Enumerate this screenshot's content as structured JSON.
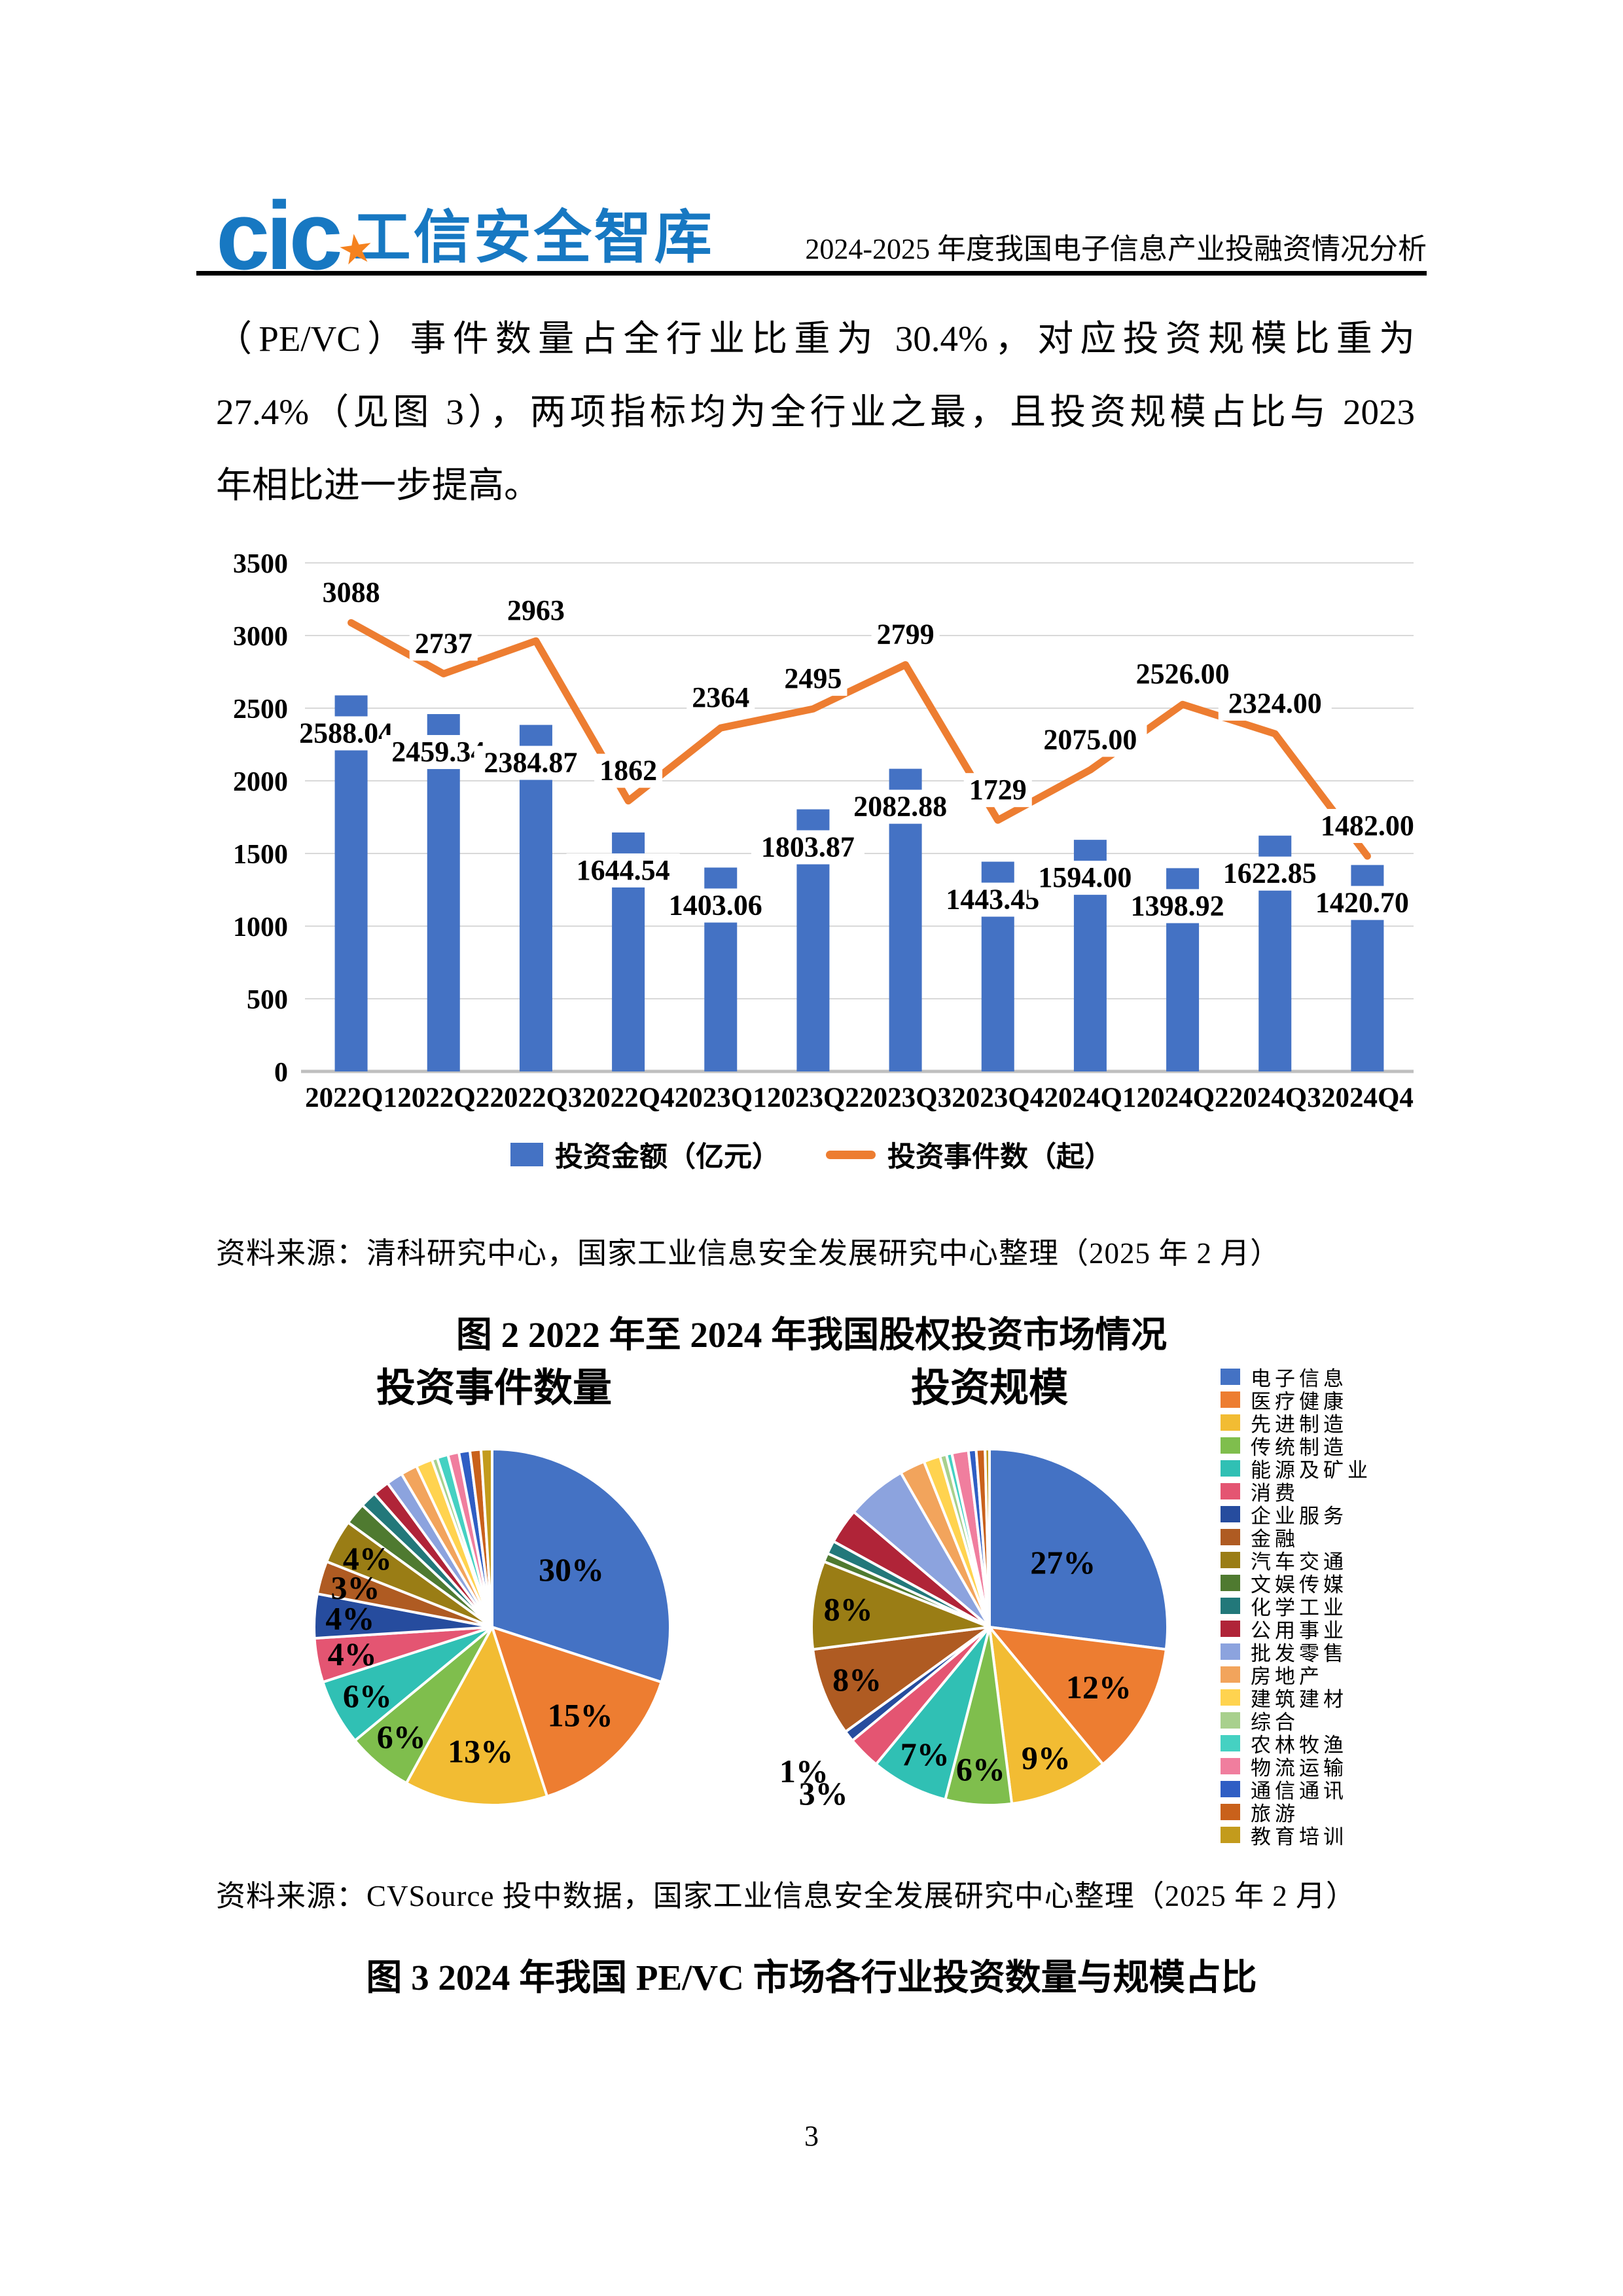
{
  "header": {
    "logo_cic": "cic",
    "logo_cn": "工信安全智库",
    "star_icon": "star-icon",
    "title": "2024-2025 年度我国电子信息产业投融资情况分析"
  },
  "paragraph": {
    "lines": [
      "（PE/VC）事件数量占全行业比重为 30.4%，对应投资规模比重为",
      "27.4%（见图 3），两项指标均为全行业之最，且投资规模占比与 2023",
      "年相比进一步提高。"
    ]
  },
  "chart_data": [
    {
      "type": "bar",
      "title": "2022年至2024年我国股权投资市场情况",
      "categories": [
        "2022Q1",
        "2022Q2",
        "2022Q3",
        "2022Q4",
        "2023Q1",
        "2023Q2",
        "2023Q3",
        "2023Q4",
        "2024Q1",
        "2024Q2",
        "2024Q3",
        "2024Q4"
      ],
      "series": [
        {
          "name": "投资金额（亿元）",
          "chart": "bar",
          "color": "#4472C4",
          "values": [
            2588.04,
            2459.34,
            2384.87,
            1644.54,
            1403.06,
            1803.87,
            2082.88,
            1443.45,
            1594.0,
            1398.92,
            1622.85,
            1420.7
          ],
          "labels": [
            "2588.04",
            "2459.34",
            "2384.87",
            "1644.54",
            "1403.06",
            "1803.87",
            "2082.88",
            "1443.45",
            "1594.00",
            "1398.92",
            "1622.85",
            "1420.70"
          ]
        },
        {
          "name": "投资事件数（起）",
          "chart": "line",
          "color": "#ED7D31",
          "values": [
            3088,
            2737,
            2963,
            1862,
            2364,
            2495,
            2799,
            1729,
            2075,
            2526,
            2324,
            1482
          ],
          "labels": [
            "3088",
            "2737",
            "2963",
            "1862",
            "2364",
            "2495",
            "2799",
            "1729",
            "2075.00",
            "2526.00",
            "2324.00",
            "1482.00"
          ]
        }
      ],
      "ylim": [
        0,
        3500
      ],
      "ytick_step": 500,
      "grid": true,
      "legend_position": "bottom"
    },
    {
      "type": "pie",
      "title": "投资事件数量",
      "categories": [
        "电子信息",
        "医疗健康",
        "先进制造",
        "传统制造",
        "能源及矿业",
        "消费",
        "企业服务",
        "金融",
        "汽车交通",
        "文娱传媒",
        "化学工业",
        "公用事业",
        "批发零售",
        "房地产",
        "建筑建材",
        "综合",
        "农林牧渔",
        "物流运输",
        "通信通讯",
        "旅游",
        "教育培训"
      ],
      "values": [
        30,
        15,
        13,
        6,
        6,
        4,
        4,
        3,
        4,
        2,
        1.5,
        1.5,
        1.5,
        1.5,
        1.5,
        0.5,
        1,
        1,
        1,
        1,
        1
      ],
      "labels": [
        "30%",
        "15%",
        "13%",
        "6%",
        "6%",
        "4%",
        "4%",
        "3%",
        "4%",
        "",
        "",
        "",
        "",
        "",
        "",
        "",
        "",
        "",
        "",
        "",
        ""
      ],
      "outside_label_indices": []
    },
    {
      "type": "pie",
      "title": "投资规模",
      "categories": [
        "电子信息",
        "医疗健康",
        "先进制造",
        "传统制造",
        "能源及矿业",
        "消费",
        "企业服务",
        "金融",
        "汽车交通",
        "文娱传媒",
        "化学工业",
        "公用事业",
        "批发零售",
        "房地产",
        "建筑建材",
        "综合",
        "农林牧渔",
        "物流运输",
        "通信通讯",
        "旅游",
        "教育培训"
      ],
      "values": [
        27,
        12,
        9,
        6,
        7,
        3,
        1,
        8,
        8,
        0.8,
        1.2,
        3.2,
        5.5,
        2.3,
        1.5,
        0.6,
        0.5,
        1.5,
        0.7,
        0.8,
        0.4
      ],
      "labels": [
        "27%",
        "12%",
        "9%",
        "6%",
        "7%",
        "3%",
        "1%",
        "8%",
        "8%",
        "",
        "",
        "",
        "",
        "",
        "",
        "",
        "",
        "",
        "",
        "",
        ""
      ],
      "outside_label_indices": [
        5,
        6
      ]
    }
  ],
  "industry_legend": [
    {
      "label": "电子信息",
      "color": "#4472C4"
    },
    {
      "label": "医疗健康",
      "color": "#ED7D31"
    },
    {
      "label": "先进制造",
      "color": "#F2BC33"
    },
    {
      "label": "传统制造",
      "color": "#7FBE4D"
    },
    {
      "label": "能源及矿业",
      "color": "#30C0B4"
    },
    {
      "label": "消费",
      "color": "#E45572"
    },
    {
      "label": "企业服务",
      "color": "#264C9E"
    },
    {
      "label": "金融",
      "color": "#AF5B22"
    },
    {
      "label": "汽车交通",
      "color": "#9A7D15"
    },
    {
      "label": "文娱传媒",
      "color": "#4F7A30"
    },
    {
      "label": "化学工业",
      "color": "#22787A"
    },
    {
      "label": "公用事业",
      "color": "#B02438"
    },
    {
      "label": "批发零售",
      "color": "#8CA3DE"
    },
    {
      "label": "房地产",
      "color": "#F2A45C"
    },
    {
      "label": "建筑建材",
      "color": "#FFD34F"
    },
    {
      "label": "综合",
      "color": "#A8D08D"
    },
    {
      "label": "农林牧渔",
      "color": "#45D1C2"
    },
    {
      "label": "物流运输",
      "color": "#F07E9E"
    },
    {
      "label": "通信通讯",
      "color": "#2F5EC4"
    },
    {
      "label": "旅游",
      "color": "#C9611B"
    },
    {
      "label": "教育培训",
      "color": "#C39B1C"
    }
  ],
  "figure2": {
    "source": "资料来源：清科研究中心，国家工业信息安全发展研究中心整理（2025 年 2 月）",
    "caption": "图 2 2022 年至 2024 年我国股权投资市场情况"
  },
  "figure3": {
    "source": "资料来源：CVSource 投中数据，国家工业信息安全发展研究中心整理（2025 年 2 月）",
    "caption": "图 3 2024 年我国 PE/VC 市场各行业投资数量与规模占比"
  },
  "page_number": "3"
}
